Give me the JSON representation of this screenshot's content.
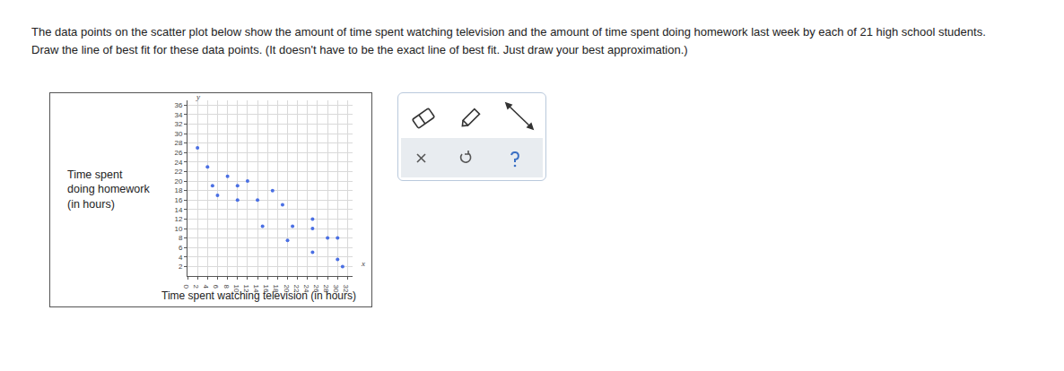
{
  "question": [
    "The data points on the scatter plot below show the amount of time spent watching television and the amount of time spent doing homework last week by each of 21 high school students.",
    "Draw the line of best fit for these data points. (It doesn't have to be the exact line of best fit. Just draw your best approximation.)"
  ],
  "chart_data": {
    "type": "scatter",
    "x_label": "Time spent watching television (in hours)",
    "y_label": [
      "Time spent",
      "doing homework",
      "(in hours)"
    ],
    "axis_letters": {
      "x": "x",
      "y": "y"
    },
    "x": [
      2,
      4,
      8,
      12,
      5,
      10,
      17,
      6,
      10,
      14,
      19,
      25,
      15,
      21,
      25,
      28,
      30,
      20,
      25,
      30,
      31
    ],
    "values": [
      27,
      23,
      21,
      20,
      19,
      19,
      18,
      17,
      16,
      16,
      15,
      12,
      10.5,
      10.5,
      10,
      8,
      8,
      7.5,
      5,
      3.5,
      2
    ],
    "color": "#4a6fe3",
    "xlim": [
      0,
      33
    ],
    "ylim": [
      0,
      37
    ],
    "xticks": [
      0,
      2,
      4,
      6,
      8,
      10,
      12,
      14,
      16,
      18,
      20,
      22,
      24,
      26,
      28,
      30,
      32
    ],
    "yticks": [
      2,
      4,
      6,
      8,
      10,
      12,
      14,
      16,
      18,
      20,
      22,
      24,
      26,
      28,
      30,
      32,
      34,
      36
    ],
    "grid": true
  }
}
